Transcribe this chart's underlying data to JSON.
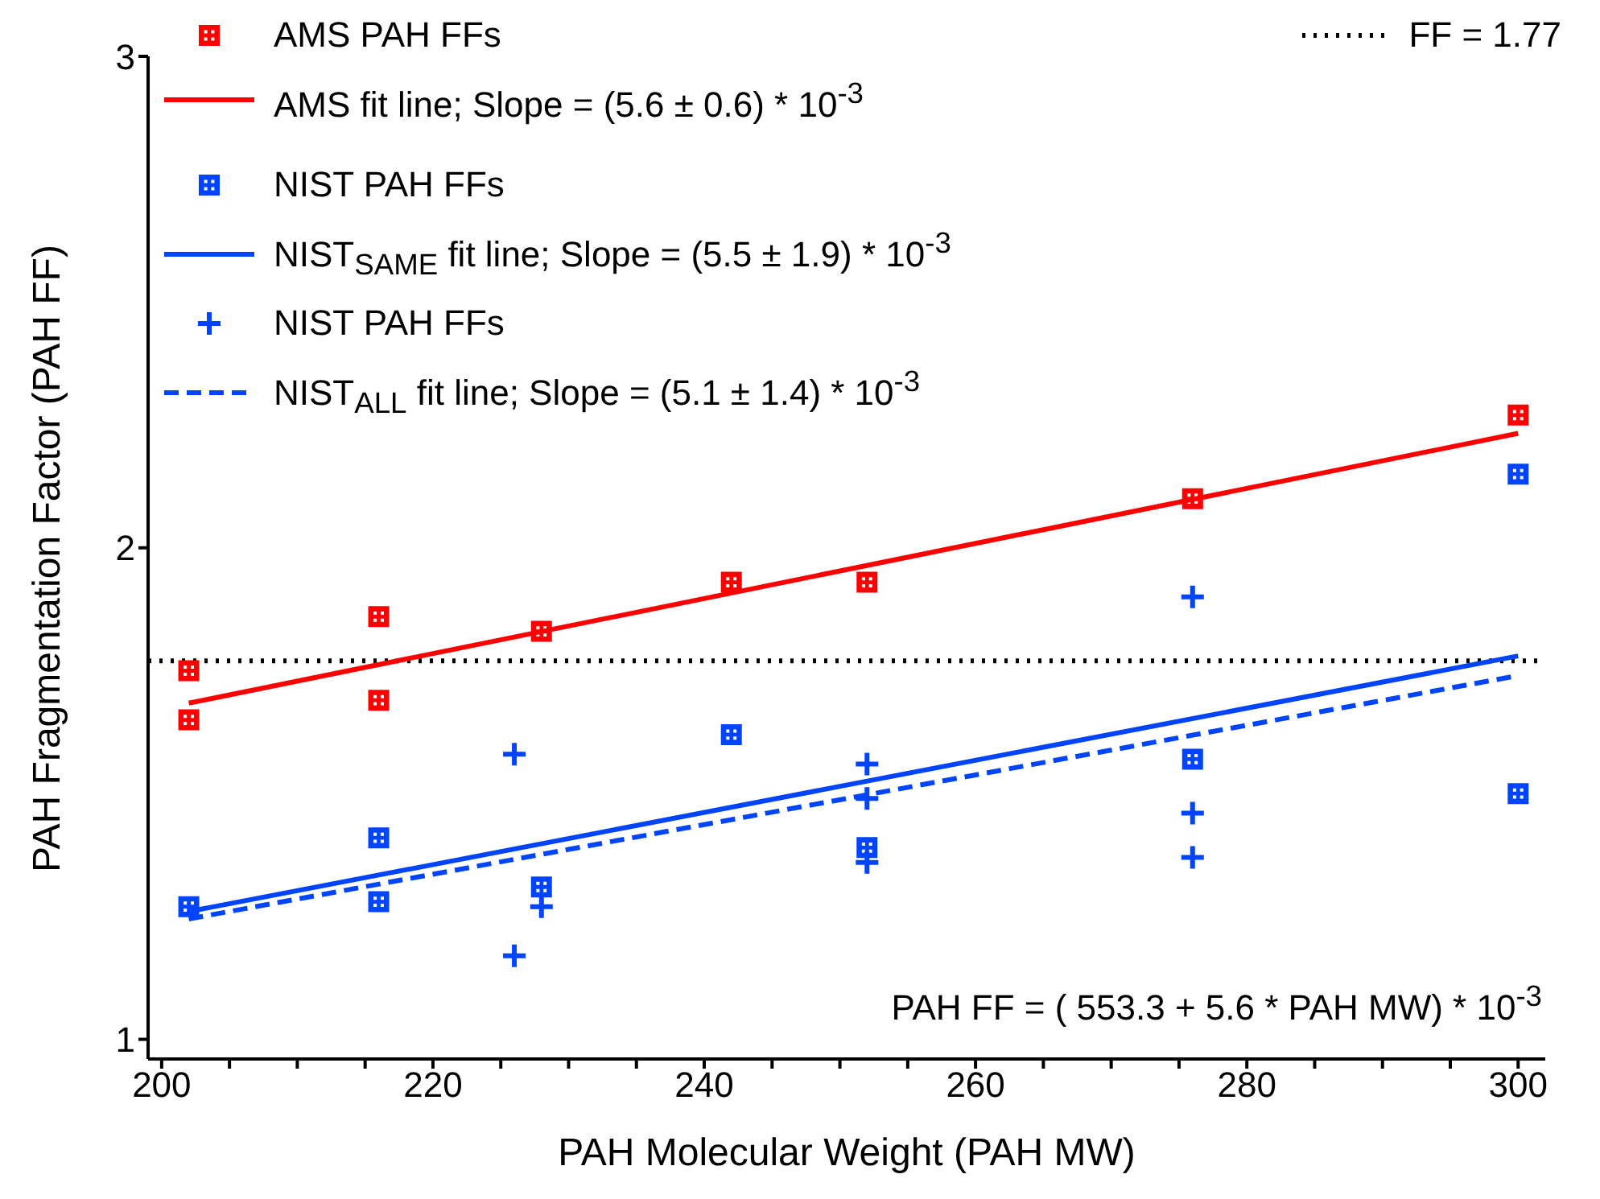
{
  "chart_data": {
    "type": "scatter",
    "xlabel": "PAH Molecular Weight (PAH MW)",
    "ylabel": "PAH Fragmentation Factor (PAH FF)",
    "xlim": [
      199,
      302
    ],
    "ylim": [
      0.96,
      3
    ],
    "xticks": [
      200,
      {
        "value": 205,
        "label": null
      },
      {
        "value": 210,
        "label": null
      },
      {
        "value": 215,
        "label": null
      },
      220,
      {
        "value": 225,
        "label": null
      },
      {
        "value": 230,
        "label": null
      },
      {
        "value": 235,
        "label": null
      },
      240,
      {
        "value": 245,
        "label": null
      },
      {
        "value": 250,
        "label": null
      },
      {
        "value": 255,
        "label": null
      },
      260,
      {
        "value": 265,
        "label": null
      },
      {
        "value": 270,
        "label": null
      },
      {
        "value": 275,
        "label": null
      },
      280,
      {
        "value": 285,
        "label": null
      },
      {
        "value": 290,
        "label": null
      },
      {
        "value": 295,
        "label": null
      },
      300
    ],
    "yticks": [
      1,
      2,
      3
    ],
    "legend": "top left",
    "series": [
      {
        "name": "AMS PAH FFs",
        "marker": "square",
        "color": "#ff0000",
        "x": [
          202,
          202,
          216,
          216,
          228,
          242,
          252,
          276,
          300
        ],
        "values": [
          1.75,
          1.65,
          1.86,
          1.69,
          1.83,
          1.93,
          1.93,
          2.1,
          2.27
        ]
      },
      {
        "name": "AMS fit line; Slope = (5.6 ± 0.6) * 10$^{-3}$",
        "type": "line",
        "line_style": "solid",
        "color": "#ff0000",
        "x": [
          202,
          300
        ],
        "values": [
          1.684,
          2.233
        ]
      },
      {
        "name": "NIST PAH FFs",
        "marker": "square",
        "color": "#0044ff",
        "x": [
          202,
          216,
          216,
          228,
          242,
          252,
          276,
          300,
          300
        ],
        "values": [
          1.27,
          1.28,
          1.41,
          1.31,
          1.62,
          1.39,
          1.57,
          2.15,
          1.5
        ]
      },
      {
        "name": "NIST$_{SAME}$ fit line; Slope = (5.5 ± 1.9) * 10$^{-3}$",
        "type": "line",
        "line_style": "solid",
        "color": "#0044ff",
        "x": [
          202,
          300
        ],
        "values": [
          1.26,
          1.78
        ]
      },
      {
        "name": "NIST PAH FFs",
        "marker": "cross",
        "color": "#0044ff",
        "x": [
          226,
          226,
          228,
          252,
          252,
          252,
          276,
          276,
          276
        ],
        "values": [
          1.58,
          1.17,
          1.27,
          1.56,
          1.49,
          1.36,
          1.9,
          1.46,
          1.37
        ]
      },
      {
        "name": "NIST$_{ALL}$ fit line; Slope = (5.1 ± 1.4) * 10$^{-3}$",
        "type": "line",
        "line_style": "dashed",
        "color": "#0044ff",
        "x": [
          202,
          300
        ],
        "values": [
          1.245,
          1.74
        ]
      }
    ],
    "ref_lines": [
      {
        "axis": "y",
        "value": 1.77,
        "label": "FF = 1.77",
        "color": "#000000",
        "line_style": "dotted"
      }
    ],
    "annotations": [
      "PAH FF = ( 553.3 + 5.6 * PAH MW) * 10$^{-3}$"
    ]
  }
}
